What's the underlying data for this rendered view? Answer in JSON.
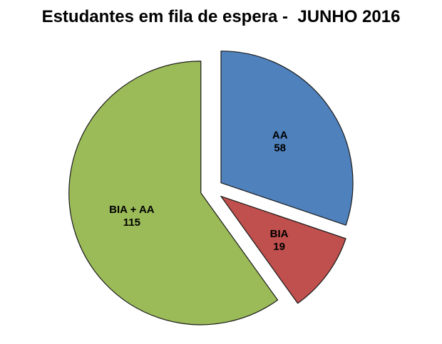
{
  "chart_data": {
    "type": "pie",
    "title": "Estudantes em fila de espera -  JUNHO 2016",
    "categories": [
      "AA",
      "BIA",
      "BIA + AA"
    ],
    "values": [
      58,
      19,
      115
    ],
    "value_labels": [
      "58",
      "19",
      "115"
    ],
    "colors": [
      "#4F81BD",
      "#C0504D",
      "#9BBB59"
    ],
    "slice_border_color": "#1a1a1a",
    "label_color": "#000000",
    "background": "#FFFFFF",
    "start_angle_deg": 0,
    "direction": "clockwise",
    "exploded": true,
    "legend": "none",
    "data_labels": "category-and-value-inside"
  }
}
